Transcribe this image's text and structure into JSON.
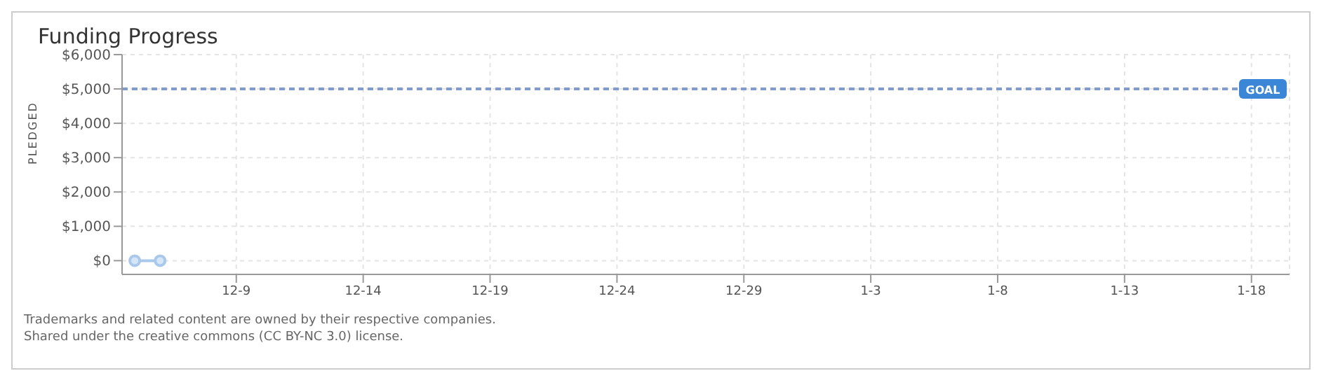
{
  "chart_data": {
    "type": "line",
    "title": "Funding Progress",
    "ylabel": "PLEDGED",
    "categories": [
      null,
      null,
      null,
      null,
      "12-9",
      null,
      null,
      null,
      null,
      "12-14",
      null,
      null,
      null,
      null,
      "12-19",
      null,
      null,
      null,
      null,
      "12-24",
      null,
      null,
      null,
      null,
      "12-29",
      null,
      null,
      null,
      null,
      "1-3",
      null,
      null,
      null,
      null,
      "1-8",
      null,
      null,
      null,
      null,
      "1-13",
      null,
      null,
      null,
      null,
      "1-18",
      null
    ],
    "series": [
      {
        "color": "#a9c8ea",
        "values": [
          0,
          0,
          null,
          null,
          null,
          null,
          null,
          null,
          null,
          null,
          null,
          null,
          null,
          null,
          null,
          null,
          null,
          null,
          null,
          null,
          null,
          null,
          null,
          null,
          null,
          null,
          null,
          null,
          null,
          null,
          null,
          null,
          null,
          null,
          null,
          null,
          null,
          null,
          null,
          null,
          null,
          null,
          null,
          null,
          null,
          null
        ]
      }
    ],
    "ylim": [
      -400,
      6000
    ],
    "yticks": [
      {
        "value": 0,
        "label": "$0"
      },
      {
        "value": 1000,
        "label": "$1,000"
      },
      {
        "value": 2000,
        "label": "$2,000"
      },
      {
        "value": 3000,
        "label": "$3,000"
      },
      {
        "value": 4000,
        "label": "$4,000"
      },
      {
        "value": 5000,
        "label": "$5,000"
      },
      {
        "value": 6000,
        "label": "$6,000"
      }
    ],
    "ref_lines": [
      {
        "axis": "y",
        "value": 5000,
        "label": "GOAL",
        "color": "#7f9ccb",
        "line_style": "dashed"
      }
    ],
    "grid": true,
    "legend": false,
    "marker": "circle",
    "line_style": "solid",
    "annotations": [
      "Trademarks and related content are owned by their respective companies.",
      "Shared under the creative commons (CC BY-NC 3.0) license."
    ]
  }
}
